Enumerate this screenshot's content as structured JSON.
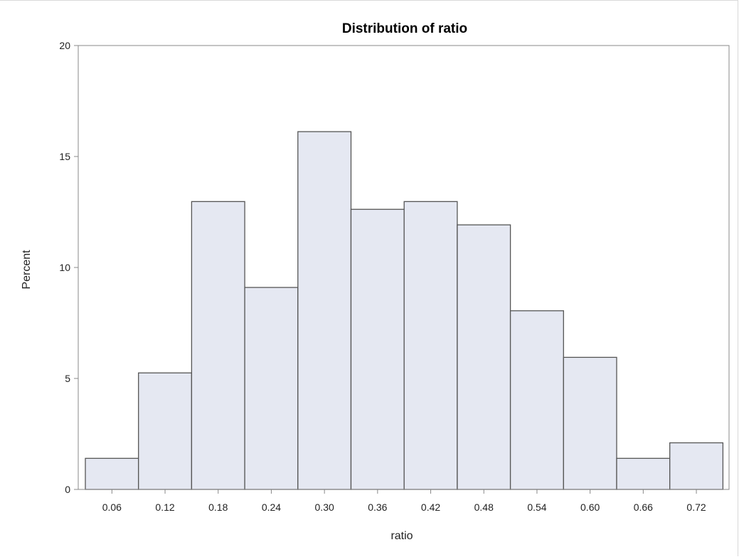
{
  "chart_data": {
    "type": "bar",
    "title": "Distribution of ratio",
    "xlabel": "ratio",
    "ylabel": "Percent",
    "bin_width": 0.06,
    "categories": [
      "0.06",
      "0.12",
      "0.18",
      "0.24",
      "0.30",
      "0.36",
      "0.42",
      "0.48",
      "0.54",
      "0.60",
      "0.66",
      "0.72"
    ],
    "values": [
      1.4,
      5.25,
      12.97,
      9.1,
      16.12,
      12.62,
      12.97,
      11.92,
      8.05,
      5.95,
      1.4,
      2.1
    ],
    "ylim": [
      0,
      20
    ],
    "yticks": [
      0,
      5,
      10,
      15,
      20
    ],
    "grid": false,
    "legend": "none",
    "colors": {
      "bar_fill": "#e5e8f2",
      "bar_stroke": "#555555",
      "axis": "#888888"
    }
  }
}
